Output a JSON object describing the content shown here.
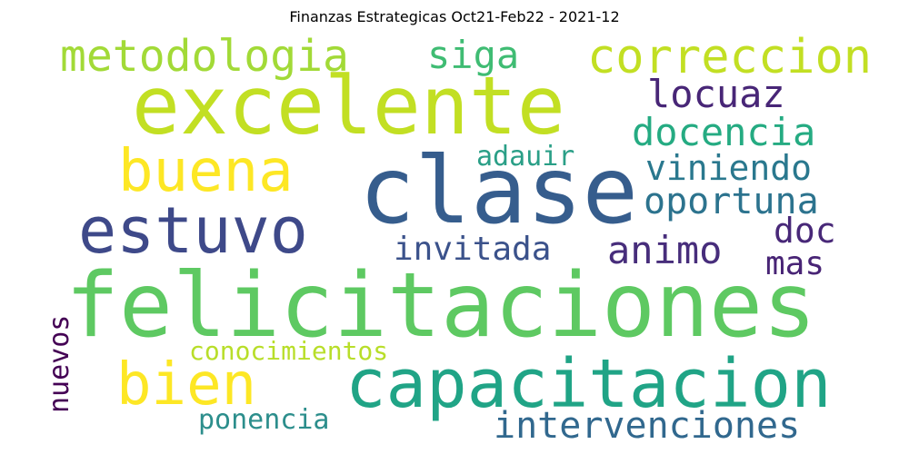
{
  "chart_data": {
    "type": "wordcloud",
    "title": "Finanzas Estrategicas Oct21-Feb22 - 2021-12",
    "words": [
      {
        "text": "felicitaciones",
        "color": "#5ec962"
      },
      {
        "text": "excelente",
        "color": "#c2df23"
      },
      {
        "text": "clase",
        "color": "#365d8d"
      },
      {
        "text": "capacitacion",
        "color": "#20a486"
      },
      {
        "text": "estuvo",
        "color": "#3e4989"
      },
      {
        "text": "buena",
        "color": "#fde725"
      },
      {
        "text": "bien",
        "color": "#fde725"
      },
      {
        "text": "metodologia",
        "color": "#a2da37"
      },
      {
        "text": "correccion",
        "color": "#c2df23"
      },
      {
        "text": "siga",
        "color": "#3fbc73"
      },
      {
        "text": "locuaz",
        "color": "#482677"
      },
      {
        "text": "docencia",
        "color": "#25ab82"
      },
      {
        "text": "viniendo",
        "color": "#2a788e"
      },
      {
        "text": "oportuna",
        "color": "#2c738e"
      },
      {
        "text": "adauir",
        "color": "#2a9f87"
      },
      {
        "text": "animo",
        "color": "#472d7b"
      },
      {
        "text": "doc",
        "color": "#482878"
      },
      {
        "text": "mas",
        "color": "#482475"
      },
      {
        "text": "invitada",
        "color": "#3b528b"
      },
      {
        "text": "conocimientos",
        "color": "#b8de29"
      },
      {
        "text": "nuevos",
        "color": "#440154"
      },
      {
        "text": "intervenciones",
        "color": "#31688e"
      },
      {
        "text": "ponencia",
        "color": "#2c8e8c"
      }
    ]
  }
}
